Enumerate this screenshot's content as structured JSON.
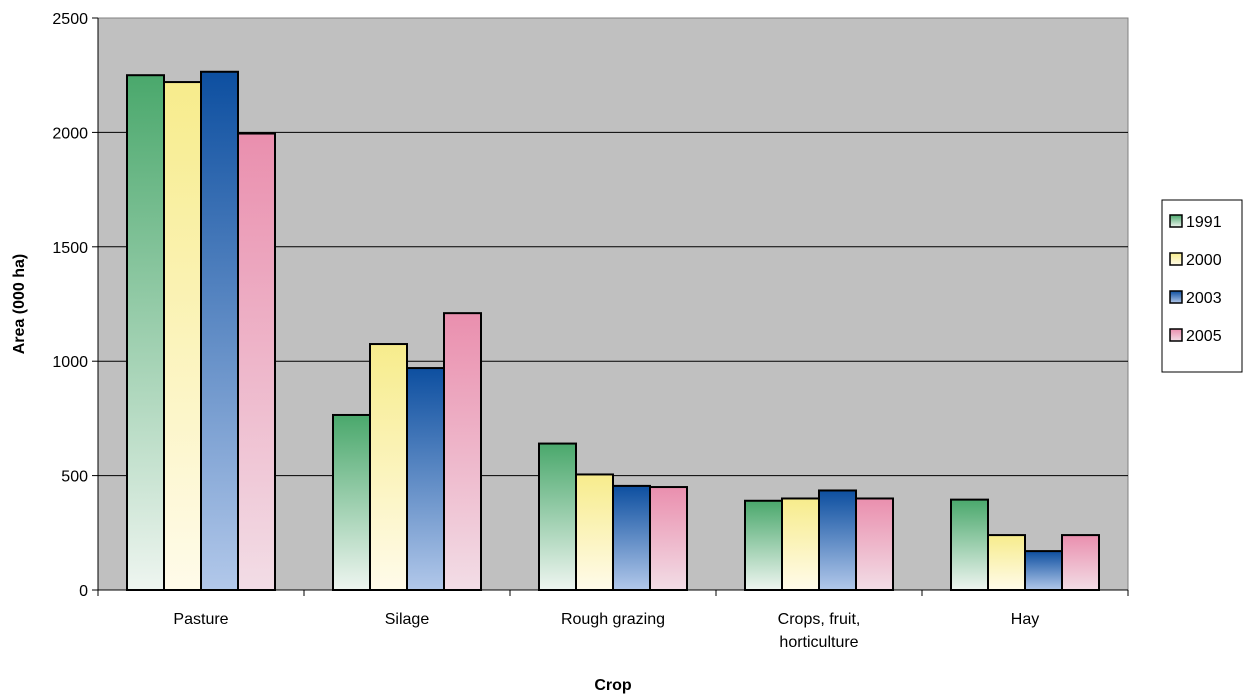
{
  "chart_data": {
    "type": "bar",
    "title": "",
    "xlabel": "Crop",
    "ylabel": "Area (000 ha)",
    "categories": [
      [
        "Pasture"
      ],
      [
        "Silage"
      ],
      [
        "Rough grazing"
      ],
      [
        "Crops, fruit,",
        "horticulture"
      ],
      [
        "Hay"
      ]
    ],
    "ylim": [
      0,
      2500
    ],
    "yticks": [
      "0",
      "500",
      "1000",
      "1500",
      "2000",
      "2500"
    ],
    "grid": true,
    "legend_position": "right",
    "plot_background": "#c0c0c0",
    "series": [
      {
        "name": "1991",
        "values": [
          2250,
          765,
          640,
          390,
          395
        ],
        "color_top": "#4aa86c",
        "color_bottom": "#eef5f0"
      },
      {
        "name": "2000",
        "values": [
          2220,
          1075,
          505,
          400,
          240
        ],
        "color_top": "#f7ec8c",
        "color_bottom": "#fffbea"
      },
      {
        "name": "2003",
        "values": [
          2265,
          970,
          455,
          435,
          170
        ],
        "color_top": "#0d4fa0",
        "color_bottom": "#b2c8ea"
      },
      {
        "name": "2005",
        "values": [
          1995,
          1210,
          450,
          400,
          240
        ],
        "color_top": "#ea8fae",
        "color_bottom": "#f2dde6"
      }
    ]
  }
}
